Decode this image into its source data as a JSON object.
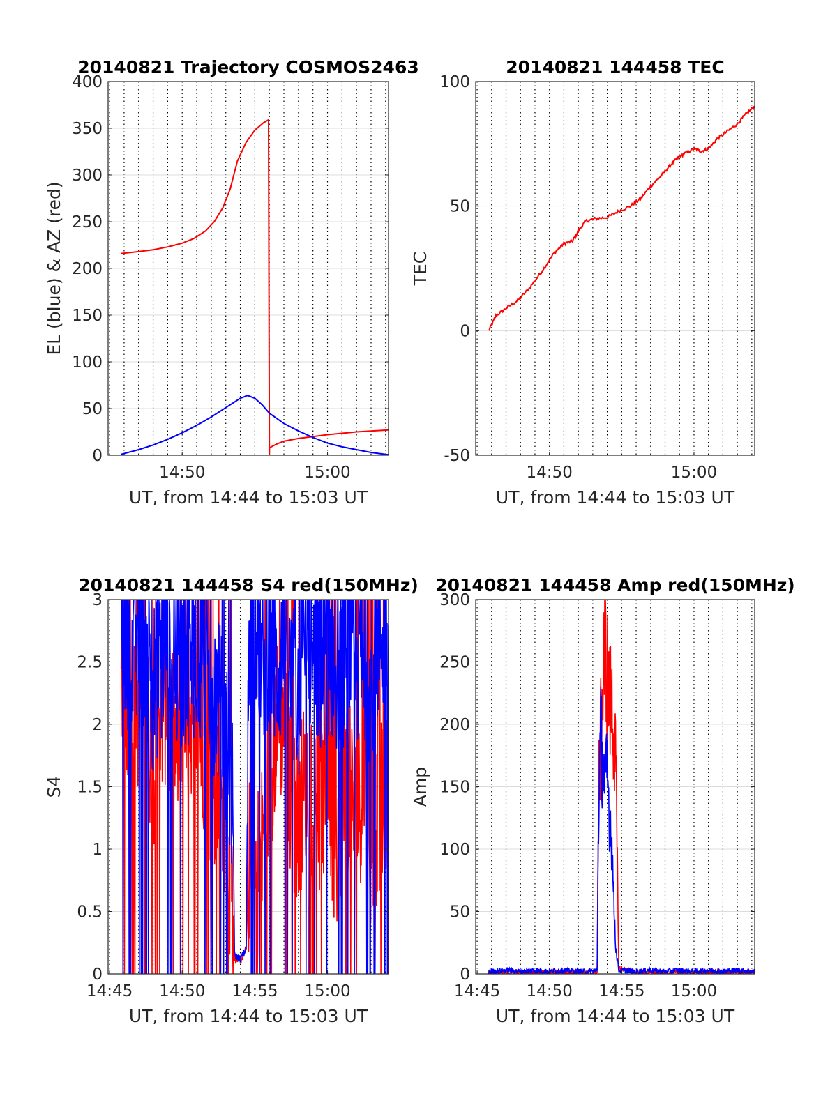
{
  "chart_data": [
    {
      "type": "line",
      "title": "20140821 Trajectory COSMOS2463",
      "xlabel": "UT, from 14:44 to 15:03 UT",
      "ylabel": "EL (blue) & AZ (red)",
      "x_unit": "minutes after 14:44 UT",
      "xlim": [
        0.9,
        20.2
      ],
      "ylim": [
        0,
        400
      ],
      "xticks": [
        6,
        16
      ],
      "xticklabels": [
        "14:50",
        "15:00"
      ],
      "yticks": [
        0,
        50,
        100,
        150,
        200,
        250,
        300,
        350,
        400
      ],
      "yticklabels": [
        "0",
        "50",
        "100",
        "150",
        "200",
        "250",
        "300",
        "350",
        "400"
      ],
      "grid": "x dotted every 0.5 min, y light",
      "series": [
        {
          "color": "#ff0000",
          "x": [
            1.8,
            3,
            4,
            5,
            6,
            6.8,
            7.6,
            8.2,
            8.8,
            9.3,
            9.8,
            10.4,
            11.0,
            11.6,
            11.94,
            12.0,
            12.01,
            12.5,
            13,
            14,
            15,
            16,
            17,
            18,
            19,
            20.2
          ],
          "values": [
            216,
            218,
            220,
            223,
            227,
            232,
            240,
            250,
            265,
            285,
            315,
            335,
            348,
            356,
            359,
            0,
            8,
            12,
            15,
            18,
            20,
            22,
            23.5,
            25,
            26,
            27
          ]
        },
        {
          "color": "#0000ff",
          "x": [
            1.8,
            3,
            4,
            5,
            6,
            7,
            8,
            9,
            10,
            10.5,
            11,
            11.5,
            12,
            13,
            14,
            15,
            16,
            17,
            18,
            19,
            20.2
          ],
          "values": [
            1,
            6,
            11,
            17,
            24,
            32,
            41,
            51,
            61,
            64,
            61,
            54,
            45,
            34,
            26,
            19,
            13,
            9,
            6,
            3,
            0.5
          ]
        }
      ]
    },
    {
      "type": "line",
      "title": "20140821 144458 TEC",
      "xlabel": "UT, from 14:44 to 15:03 UT",
      "ylabel": "TEC",
      "x_unit": "minutes after 14:44 UT",
      "xlim": [
        0.9,
        20.2
      ],
      "ylim": [
        -50,
        100
      ],
      "xticks": [
        6,
        16
      ],
      "xticklabels": [
        "14:50",
        "15:00"
      ],
      "yticks": [
        -50,
        0,
        50,
        100
      ],
      "yticklabels": [
        "-50",
        "0",
        "50",
        "100"
      ],
      "grid": "x dotted every 0.5 min, y light",
      "series": [
        {
          "color": "#ff0000",
          "x": [
            1.8,
            2.3,
            3,
            3.8,
            4.6,
            5.5,
            6.3,
            7.0,
            7.6,
            8.0,
            8.5,
            9.2,
            10.0,
            10.8,
            11.6,
            12.3,
            13.0,
            13.7,
            14.3,
            14.8,
            15.3,
            16.0,
            16.5,
            17.0,
            17.6,
            18.3,
            19.0,
            19.6,
            20.2
          ],
          "values": [
            0,
            6,
            9,
            12,
            17,
            24,
            31,
            35,
            36,
            40,
            44,
            45,
            45.5,
            48,
            50,
            53,
            58,
            62,
            66,
            69,
            71,
            73,
            72,
            73,
            77,
            80,
            83,
            87,
            90
          ]
        }
      ]
    },
    {
      "type": "line",
      "title": "20140821 144458 S4 red(150MHz)",
      "xlabel": "UT, from 14:44 to 15:03 UT",
      "ylabel": "S4",
      "x_unit": "minutes after 14:44 UT",
      "xlim": [
        0.9,
        20.2
      ],
      "ylim": [
        0,
        3
      ],
      "xticks": [
        1,
        6,
        11,
        16
      ],
      "xticklabels": [
        "14:45",
        "14:50",
        "14:55",
        "15:00"
      ],
      "yticks": [
        0,
        0.5,
        1,
        1.5,
        2,
        2.5,
        3
      ],
      "yticklabels": [
        "0",
        "0.5",
        "1",
        "1.5",
        "2",
        "2.5",
        "3"
      ],
      "grid": "x dotted every 0.5 min, y light",
      "series": [
        {
          "color": "#ff0000",
          "note_points": "dense noisy trace",
          "x": [
            1.8,
            2.5,
            3.2,
            4.0,
            4.8,
            5.5,
            6.2,
            7.0,
            7.8,
            8.5,
            9.0,
            9.5,
            9.6,
            10.0,
            10.4,
            10.6,
            11.0,
            11.5,
            12.0,
            12.5,
            13.0,
            13.5,
            14.0,
            14.5,
            15.0,
            15.5,
            16.0,
            16.5,
            17.0,
            17.5,
            18.0,
            18.5,
            19.0,
            19.5,
            20.2
          ],
          "values": [
            2.6,
            1.9,
            2.3,
            1.7,
            2.2,
            1.8,
            2.0,
            2.2,
            1.6,
            1.4,
            1.1,
            0.6,
            0.12,
            0.1,
            0.2,
            0.9,
            0.8,
            1.0,
            1.6,
            2.0,
            2.1,
            1.4,
            1.2,
            1.6,
            1.4,
            1.3,
            1.5,
            1.0,
            1.4,
            1.5,
            1.2,
            1.6,
            1.0,
            1.3,
            1.4
          ]
        },
        {
          "color": "#0000ff",
          "x": [
            1.8,
            2.5,
            3.2,
            4.0,
            4.8,
            5.5,
            6.2,
            7.0,
            7.8,
            8.5,
            9.0,
            9.5,
            9.6,
            10.0,
            10.4,
            10.6,
            11.0,
            11.5,
            12.0,
            12.5,
            13.0,
            13.5,
            14.0,
            14.5,
            15.0,
            15.5,
            16.0,
            16.5,
            17.0,
            17.5,
            18.0,
            18.5,
            19.0,
            19.5,
            20.2
          ],
          "values": [
            2.9,
            2.5,
            2.7,
            2.3,
            2.6,
            2.4,
            2.5,
            2.6,
            2.4,
            2.2,
            1.8,
            1.4,
            0.15,
            0.12,
            0.2,
            2.8,
            2.9,
            2.5,
            2.7,
            2.4,
            2.6,
            2.3,
            2.2,
            2.5,
            2.6,
            2.4,
            2.6,
            2.5,
            2.4,
            2.7,
            2.5,
            2.6,
            2.3,
            2.7,
            2.8
          ]
        }
      ]
    },
    {
      "type": "line",
      "title": "20140821 144458 Amp red(150MHz)",
      "xlabel": "UT, from 14:44 to 15:03 UT",
      "ylabel": "Amp",
      "x_unit": "minutes after 14:44 UT",
      "xlim": [
        0.9,
        20.2
      ],
      "ylim": [
        0,
        300
      ],
      "xticks": [
        1,
        6,
        11,
        16
      ],
      "xticklabels": [
        "14:45",
        "14:50",
        "14:55",
        "15:00"
      ],
      "yticks": [
        0,
        50,
        100,
        150,
        200,
        250,
        300
      ],
      "yticklabels": [
        "0",
        "50",
        "100",
        "150",
        "200",
        "250",
        "300"
      ],
      "grid": "x dotted every 0.5 min, y light",
      "series": [
        {
          "color": "#ff0000",
          "x": [
            1.8,
            5,
            9.0,
            9.3,
            9.4,
            9.55,
            9.7,
            9.85,
            10.0,
            10.15,
            10.3,
            10.45,
            10.6,
            10.8,
            12,
            16,
            20.2
          ],
          "values": [
            1,
            1,
            1,
            1,
            150,
            190,
            230,
            270,
            240,
            220,
            210,
            200,
            160,
            5,
            1,
            1,
            1
          ]
        },
        {
          "color": "#0000ff",
          "x": [
            1.8,
            3,
            4,
            5,
            6,
            7,
            8,
            9.0,
            9.3,
            9.4,
            9.55,
            9.7,
            9.85,
            10.0,
            10.15,
            10.3,
            10.45,
            10.6,
            10.8,
            12,
            13,
            14,
            15,
            16,
            17,
            18,
            19,
            20.2
          ],
          "values": [
            2,
            3,
            2,
            3,
            2,
            3,
            2,
            2,
            3,
            130,
            190,
            170,
            150,
            160,
            130,
            110,
            60,
            20,
            3,
            2,
            3,
            2,
            3,
            2,
            3,
            2,
            3,
            2
          ]
        }
      ]
    }
  ]
}
